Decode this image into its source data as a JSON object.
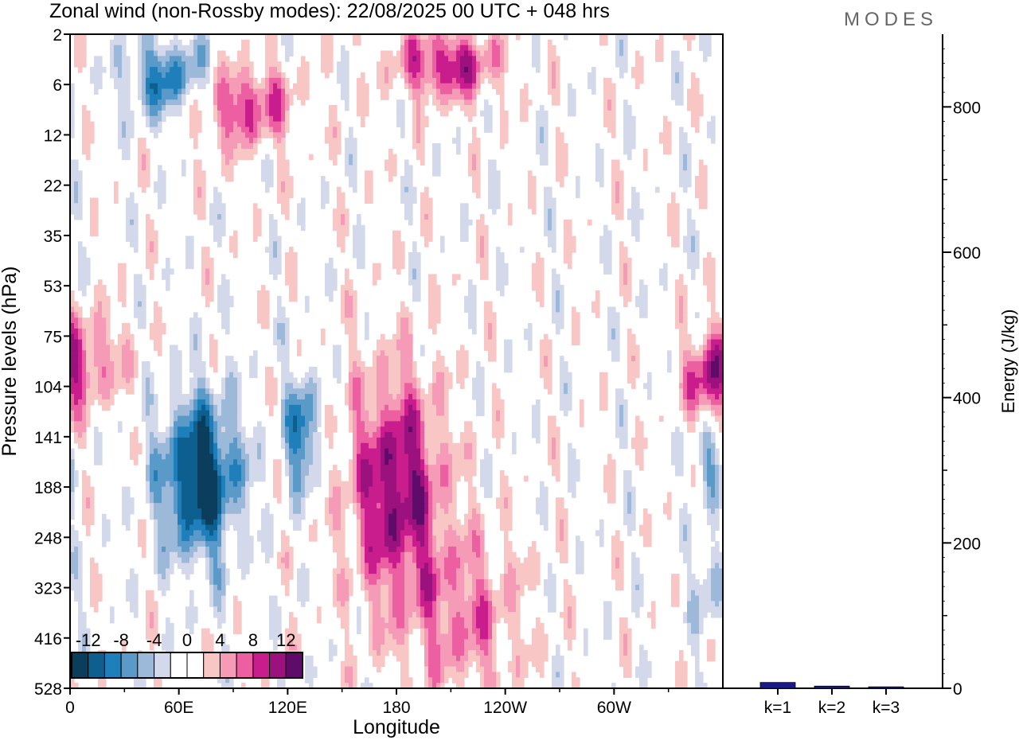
{
  "header": {
    "title": "Zonal wind (non-Rossby modes):  22/08/2025  00 UTC  + 048 hrs",
    "logo": "MODES"
  },
  "chart_data": [
    {
      "type": "heatmap",
      "title": "Zonal wind (non-Rossby modes):  22/08/2025  00 UTC  + 048 hrs",
      "xlabel": "Longitude",
      "ylabel": "Pressure levels (hPa)",
      "x_ticks": [
        "0",
        "60E",
        "120E",
        "180",
        "120W",
        "60W"
      ],
      "x_tick_degrees": [
        0,
        60,
        120,
        180,
        240,
        300
      ],
      "x_range_degrees": [
        0,
        360
      ],
      "y_levels": [
        "2",
        "6",
        "12",
        "22",
        "35",
        "53",
        "75",
        "104",
        "141",
        "188",
        "248",
        "323",
        "416",
        "528"
      ],
      "colorbar": {
        "labels": [
          "-12",
          "-8",
          "-4",
          "0",
          "4",
          "8",
          "12"
        ],
        "colors": [
          "#0b3d5c",
          "#0d5f8f",
          "#1f7fba",
          "#5a9ac9",
          "#9db9da",
          "#d3d8ea",
          "#ffffff",
          "#ffffff",
          "#f8c6c4",
          "#f59ab7",
          "#ec5fa1",
          "#c91c8d",
          "#9b117e",
          "#5e0b6a"
        ]
      },
      "features": [
        {
          "sign": "neg",
          "lon": 72,
          "level_index": 8.8,
          "lon_half_width": 22,
          "level_half_width": 1.6,
          "peak": -14
        },
        {
          "sign": "neg",
          "lon": 128,
          "level_index": 7.9,
          "lon_half_width": 9,
          "level_half_width": 1.1,
          "peak": -10
        },
        {
          "sign": "pos",
          "lon": 180,
          "level_index": 9.0,
          "lon_half_width": 26,
          "level_half_width": 2.2,
          "peak": 12
        },
        {
          "sign": "pos",
          "lon": 218,
          "level_index": 11.6,
          "lon_half_width": 32,
          "level_half_width": 1.6,
          "peak": 6
        },
        {
          "sign": "pos",
          "lon": 95,
          "level_index": 1.4,
          "lon_half_width": 28,
          "level_half_width": 0.8,
          "peak": 9
        },
        {
          "sign": "neg",
          "lon": 55,
          "level_index": 0.9,
          "lon_half_width": 25,
          "level_half_width": 0.8,
          "peak": -9
        },
        {
          "sign": "pos",
          "lon": 208,
          "level_index": 0.6,
          "lon_half_width": 28,
          "level_half_width": 0.7,
          "peak": 10
        },
        {
          "sign": "pos",
          "lon": 8,
          "level_index": 6.4,
          "lon_half_width": 22,
          "level_half_width": 0.9,
          "peak": 7
        },
        {
          "sign": "pos",
          "lon": 352,
          "level_index": 7.0,
          "lon_half_width": 12,
          "level_half_width": 0.8,
          "peak": 8
        },
        {
          "sign": "neg",
          "lon": 352,
          "level_index": 8.5,
          "lon_half_width": 8,
          "level_half_width": 0.8,
          "peak": -6
        },
        {
          "sign": "neg",
          "lon": 352,
          "level_index": 11.0,
          "lon_half_width": 8,
          "level_half_width": 1.0,
          "peak": -5
        }
      ]
    },
    {
      "type": "bar",
      "ylabel": "Energy (J/kg)",
      "categories": [
        "k=1",
        "k=2",
        "k=3"
      ],
      "values": [
        8,
        3,
        2
      ],
      "ylim": [
        0,
        900
      ],
      "y_ticks": [
        0,
        200,
        400,
        600,
        800
      ],
      "bar_color": "#1a1a8c"
    }
  ]
}
